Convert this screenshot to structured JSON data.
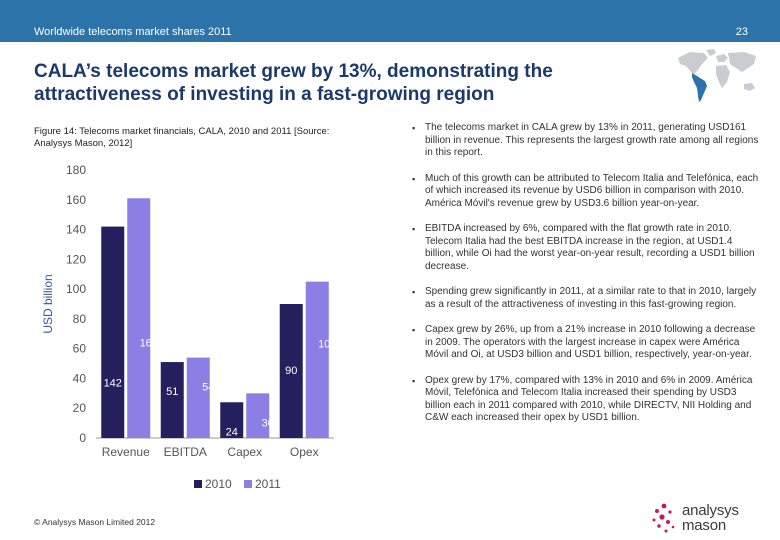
{
  "header": {
    "deck_title": "Worldwide telecoms market shares 2011",
    "page_number": "23"
  },
  "headline": "CALA’s telecoms market grew by 13%, demonstrating the attractiveness of investing in a fast-growing region",
  "figure_caption": "Figure 14: Telecoms market financials, CALA, 2010 and 2011 [Source: Analysys Mason, 2012]",
  "chart_data": {
    "type": "bar",
    "categories": [
      "Revenue",
      "EBITDA",
      "Capex",
      "Opex"
    ],
    "series": [
      {
        "name": "2010",
        "values": [
          142,
          51,
          24,
          90
        ],
        "color": "#24205e"
      },
      {
        "name": "2011",
        "values": [
          161,
          54,
          30,
          105
        ],
        "color": "#8b7fe6"
      }
    ],
    "ylabel": "USD billion",
    "ylim": [
      0,
      180
    ],
    "yticks": [
      0,
      20,
      40,
      60,
      80,
      100,
      120,
      140,
      160,
      180
    ],
    "grid": false,
    "legend": "bottom"
  },
  "bullets": [
    "The telecoms market in CALA grew by 13% in 2011, generating USD161 billion in revenue. This represents the largest growth rate among all regions in this report.",
    "Much of this growth can be attributed to Telecom Italia and Telefónica, each of which increased its revenue by USD6 billion in comparison with 2010. América Móvil's revenue grew by USD3.6 billion year-on-year.",
    "EBITDA increased by 6%, compared with the flat growth rate in 2010. Telecom Italia had the best EBITDA increase in the region, at USD1.4 billion, while Oi had the worst year-on-year result, recording a USD1 billion decrease.",
    "Spending grew significantly in 2011, at a similar rate to that in 2010, largely as a result of the attractiveness of investing in this fast-growing region.",
    "Capex grew by 26%, up from a 21% increase in 2010 following a decrease in 2009. The operators with the largest increase in capex were América Móvil and Oi, at USD3 billion and USD1 billion, respectively, year-on-year.",
    "Opex grew by 17%, compared with 13% in 2010 and 6% in 2009. América Móvil, Telefónica and Telecom Italia increased their spending by USD3 billion each in 2011 compared with 2010, while DIRECTV, NII Holding and C&W each increased their opex by USD1 billion."
  ],
  "bullet_glyph": "▪",
  "footer": "© Analysys Mason Limited 2012",
  "logo": {
    "line1": "analysys",
    "line2": "mason",
    "dot_color": "#c4176c"
  },
  "colors": {
    "header_bar": "#2b73a8",
    "headline": "#1b3a6b",
    "map_land": "#c9ccd1",
    "map_highlight": "#2b73a8"
  }
}
